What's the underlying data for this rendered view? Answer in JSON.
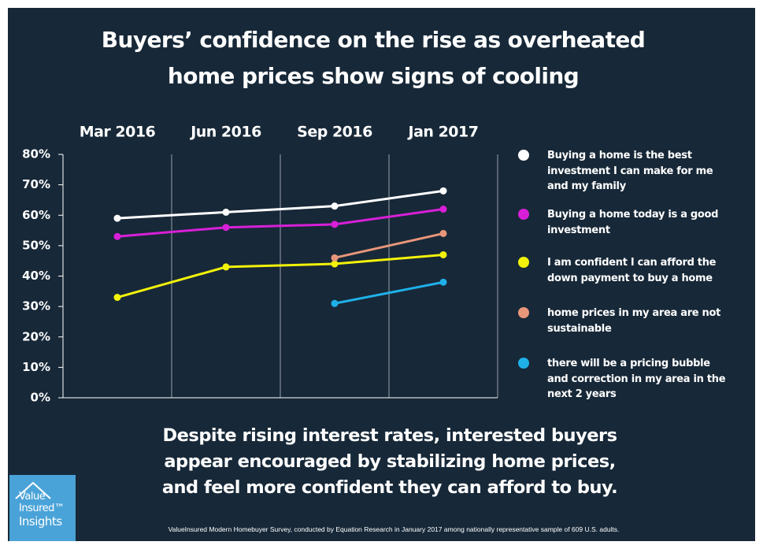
{
  "chart_data": {
    "type": "line",
    "title": "Buyers’ confidence on the rise as overheated home prices show signs of cooling",
    "subtitle": "Despite rising interest rates, interested buyers appear encouraged by stabilizing home prices, and feel more confident they can afford to buy.",
    "source": "ValueInsured Modern Homebuyer Survey, conducted by Equation Research in January 2017 among nationally representative sample of 609 U.S. adults.",
    "categories": [
      "Mar 2016",
      "Jun 2016",
      "Sep 2016",
      "Jan 2017"
    ],
    "series": [
      {
        "name": "Buying a home is the best investment I can make for me and my family",
        "color": "#ffffff",
        "values": [
          59,
          61,
          63,
          68
        ]
      },
      {
        "name": "Buying a home today is a good investment",
        "color": "#d81fd8",
        "values": [
          53,
          56,
          57,
          62
        ]
      },
      {
        "name": "I am confident I can afford the down payment to buy a home",
        "color": "#f2f20a",
        "values": [
          33,
          43,
          44,
          47
        ]
      },
      {
        "name": "home prices in my area are not sustainable",
        "color": "#e8967a",
        "values": [
          null,
          null,
          46,
          54
        ]
      },
      {
        "name": "there will be a pricing bubble and correction in my area in the next 2 years",
        "color": "#1fb0e8",
        "values": [
          null,
          null,
          31,
          38
        ]
      }
    ],
    "ylim": [
      0,
      80
    ],
    "yticks": [
      {
        "value": 0,
        "label": "0%"
      },
      {
        "value": 10,
        "label": "10%"
      },
      {
        "value": 20,
        "label": "20%"
      },
      {
        "value": 30,
        "label": "30%"
      },
      {
        "value": 40,
        "label": "40%"
      },
      {
        "value": 50,
        "label": "50%"
      },
      {
        "value": 60,
        "label": "60%"
      },
      {
        "value": 70,
        "label": "70%"
      },
      {
        "value": 80,
        "label": "80%"
      }
    ]
  },
  "logo": [
    "Value",
    "Insured™",
    "Insights"
  ]
}
